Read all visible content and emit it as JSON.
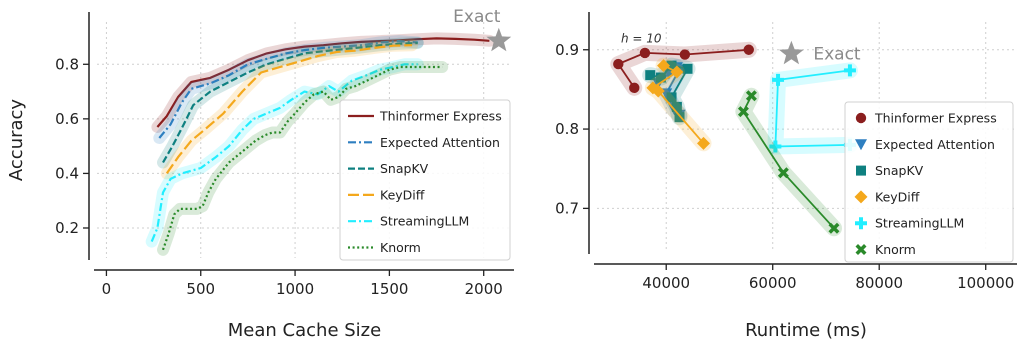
{
  "colors": {
    "thinformer": "#8B1E1E",
    "expected": "#2E7FC0",
    "snapkv": "#0E8080",
    "keydiff": "#F4A81C",
    "streaming": "#22EEFF",
    "knorm": "#2A8A2A",
    "exact": "#999999"
  },
  "chart_data": [
    {
      "type": "line",
      "xlabel": "Mean Cache Size",
      "ylabel": "Accuracy",
      "xlim": [
        -50,
        2150
      ],
      "ylim": [
        0.09,
        0.955
      ],
      "xticks": [
        0,
        500,
        1000,
        1500,
        2000
      ],
      "yticks": [
        0.2,
        0.4,
        0.6,
        0.8
      ],
      "grid": true,
      "legend": "lower-right",
      "annotation": {
        "text": "Exact",
        "x": 2080,
        "y": 0.886
      },
      "series": [
        {
          "name": "Thinformer Express",
          "key": "thinformer",
          "style": "solid",
          "points": [
            [
              270,
              0.57
            ],
            [
              320,
              0.61
            ],
            [
              380,
              0.68
            ],
            [
              450,
              0.735
            ],
            [
              550,
              0.75
            ],
            [
              650,
              0.78
            ],
            [
              750,
              0.815
            ],
            [
              850,
              0.84
            ],
            [
              950,
              0.855
            ],
            [
              1050,
              0.865
            ],
            [
              1150,
              0.87
            ],
            [
              1250,
              0.877
            ],
            [
              1350,
              0.882
            ],
            [
              1450,
              0.885
            ],
            [
              1550,
              0.888
            ],
            [
              1650,
              0.892
            ],
            [
              1750,
              0.895
            ],
            [
              1850,
              0.893
            ],
            [
              1950,
              0.89
            ],
            [
              2030,
              0.886
            ]
          ]
        },
        {
          "name": "Expected Attention",
          "key": "expected",
          "style": "dashdot",
          "points": [
            [
              280,
              0.53
            ],
            [
              340,
              0.58
            ],
            [
              400,
              0.66
            ],
            [
              450,
              0.71
            ],
            [
              550,
              0.73
            ],
            [
              650,
              0.76
            ],
            [
              750,
              0.8
            ],
            [
              850,
              0.82
            ],
            [
              950,
              0.84
            ],
            [
              1050,
              0.852
            ],
            [
              1150,
              0.86
            ],
            [
              1250,
              0.865
            ],
            [
              1350,
              0.87
            ],
            [
              1450,
              0.88
            ],
            [
              1550,
              0.885
            ],
            [
              1650,
              0.88
            ]
          ]
        },
        {
          "name": "SnapKV",
          "key": "snapkv",
          "style": "dashed",
          "points": [
            [
              300,
              0.44
            ],
            [
              350,
              0.5
            ],
            [
              410,
              0.58
            ],
            [
              460,
              0.65
            ],
            [
              550,
              0.7
            ],
            [
              650,
              0.735
            ],
            [
              750,
              0.77
            ],
            [
              850,
              0.8
            ],
            [
              950,
              0.82
            ],
            [
              1050,
              0.84
            ],
            [
              1150,
              0.848
            ],
            [
              1250,
              0.855
            ],
            [
              1350,
              0.862
            ],
            [
              1450,
              0.87
            ],
            [
              1550,
              0.875
            ],
            [
              1650,
              0.878
            ]
          ]
        },
        {
          "name": "KeyDiff",
          "key": "keydiff",
          "style": "longdash",
          "points": [
            [
              320,
              0.4
            ],
            [
              380,
              0.46
            ],
            [
              450,
              0.52
            ],
            [
              520,
              0.56
            ],
            [
              620,
              0.62
            ],
            [
              720,
              0.7
            ],
            [
              820,
              0.77
            ],
            [
              920,
              0.79
            ],
            [
              1020,
              0.81
            ],
            [
              1120,
              0.83
            ],
            [
              1220,
              0.845
            ],
            [
              1320,
              0.85
            ],
            [
              1420,
              0.86
            ],
            [
              1520,
              0.868
            ],
            [
              1620,
              0.87
            ]
          ]
        },
        {
          "name": "StreamingLLM",
          "key": "streaming",
          "style": "dashdot",
          "points": [
            [
              240,
              0.15
            ],
            [
              270,
              0.2
            ],
            [
              300,
              0.33
            ],
            [
              340,
              0.38
            ],
            [
              400,
              0.4
            ],
            [
              500,
              0.42
            ],
            [
              580,
              0.46
            ],
            [
              650,
              0.5
            ],
            [
              720,
              0.56
            ],
            [
              780,
              0.6
            ],
            [
              850,
              0.62
            ],
            [
              920,
              0.64
            ],
            [
              980,
              0.67
            ],
            [
              1050,
              0.7
            ],
            [
              1120,
              0.69
            ],
            [
              1180,
              0.72
            ],
            [
              1230,
              0.7
            ],
            [
              1300,
              0.74
            ],
            [
              1380,
              0.76
            ],
            [
              1450,
              0.78
            ],
            [
              1520,
              0.79
            ],
            [
              1580,
              0.8
            ],
            [
              1650,
              0.8
            ]
          ]
        },
        {
          "name": "Knorm",
          "key": "knorm",
          "style": "dotted",
          "points": [
            [
              300,
              0.12
            ],
            [
              330,
              0.18
            ],
            [
              360,
              0.25
            ],
            [
              390,
              0.27
            ],
            [
              430,
              0.27
            ],
            [
              480,
              0.27
            ],
            [
              510,
              0.28
            ],
            [
              540,
              0.33
            ],
            [
              580,
              0.38
            ],
            [
              650,
              0.44
            ],
            [
              720,
              0.48
            ],
            [
              790,
              0.52
            ],
            [
              840,
              0.54
            ],
            [
              880,
              0.55
            ],
            [
              920,
              0.55
            ],
            [
              960,
              0.59
            ],
            [
              1000,
              0.62
            ],
            [
              1050,
              0.66
            ],
            [
              1100,
              0.69
            ],
            [
              1150,
              0.7
            ],
            [
              1190,
              0.67
            ],
            [
              1230,
              0.68
            ],
            [
              1270,
              0.71
            ],
            [
              1320,
              0.72
            ],
            [
              1380,
              0.74
            ],
            [
              1440,
              0.76
            ],
            [
              1500,
              0.78
            ],
            [
              1560,
              0.79
            ],
            [
              1620,
              0.79
            ],
            [
              1680,
              0.79
            ],
            [
              1730,
              0.79
            ],
            [
              1780,
              0.79
            ]
          ]
        }
      ]
    },
    {
      "type": "scatter",
      "xlabel": "Runtime (ms)",
      "ylabel": "",
      "xlim": [
        27000,
        105500
      ],
      "ylim": [
        0.645,
        0.935
      ],
      "xticks": [
        40000,
        60000,
        80000,
        100000
      ],
      "yticks": [
        0.7,
        0.8,
        0.9
      ],
      "grid": true,
      "legend": "lower-right",
      "annotation": {
        "text": "Exact",
        "x": 63500,
        "y": 0.895
      },
      "h_label": "h = 10",
      "series": [
        {
          "name": "Thinformer Express",
          "key": "thinformer",
          "marker": "circle",
          "points": [
            [
              55500,
              0.9
            ],
            [
              43500,
              0.894
            ],
            [
              36000,
              0.896
            ],
            [
              31000,
              0.882
            ],
            [
              34000,
              0.852
            ]
          ]
        },
        {
          "name": "Expected Attention",
          "key": "expected",
          "marker": "triangle",
          "points": [
            [
              38500,
              0.858
            ],
            [
              40500,
              0.87
            ],
            [
              42000,
              0.878
            ],
            [
              42500,
              0.875
            ],
            [
              40000,
              0.845
            ],
            [
              41500,
              0.825
            ],
            [
              42500,
              0.818
            ]
          ]
        },
        {
          "name": "SnapKV",
          "key": "snapkv",
          "marker": "square",
          "points": [
            [
              37000,
              0.868
            ],
            [
              39000,
              0.865
            ],
            [
              41000,
              0.88
            ],
            [
              44000,
              0.876
            ],
            [
              41000,
              0.84
            ],
            [
              42000,
              0.828
            ],
            [
              42500,
              0.815
            ]
          ]
        },
        {
          "name": "KeyDiff",
          "key": "keydiff",
          "marker": "diamond",
          "points": [
            [
              39500,
              0.88
            ],
            [
              42000,
              0.872
            ],
            [
              37500,
              0.852
            ],
            [
              38500,
              0.848
            ],
            [
              47000,
              0.782
            ]
          ]
        },
        {
          "name": "StreamingLLM",
          "key": "streaming",
          "marker": "plus",
          "points": [
            [
              74500,
              0.874
            ],
            [
              61000,
              0.862
            ],
            [
              60500,
              0.778
            ],
            [
              74500,
              0.78
            ]
          ]
        },
        {
          "name": "Knorm",
          "key": "knorm",
          "marker": "x",
          "points": [
            [
              56000,
              0.842
            ],
            [
              54500,
              0.822
            ],
            [
              62000,
              0.745
            ],
            [
              71500,
              0.675
            ]
          ]
        }
      ]
    }
  ]
}
